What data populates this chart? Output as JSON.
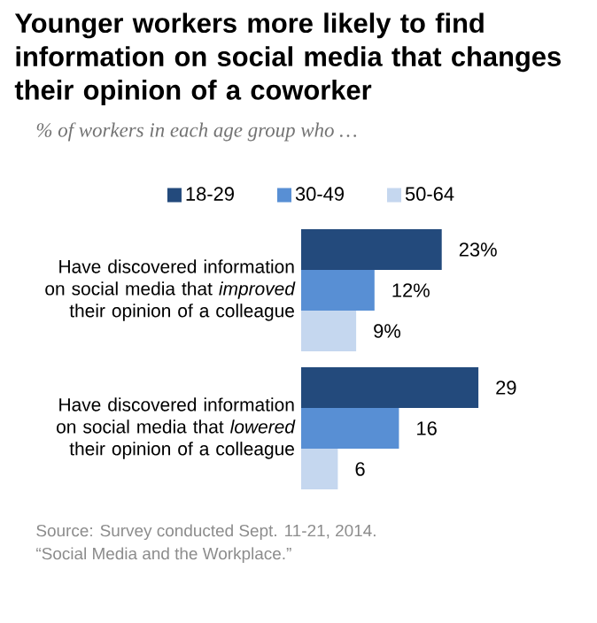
{
  "chart_data": {
    "type": "bar",
    "orientation": "horizontal",
    "title": "Younger workers more likely to find information on social media that changes their opinion of a coworker",
    "subtitle": "% of workers in each age group who …",
    "categories": [
      "Have discovered information on social media that *improved* their opinion of a colleague",
      "Have discovered information on social media that *lowered* their opinion of a colleague"
    ],
    "series": [
      {
        "name": "18-29",
        "color": "#234a7c",
        "values": [
          23,
          29
        ],
        "value_labels": [
          "23%",
          "29"
        ]
      },
      {
        "name": "30-49",
        "color": "#588fd4",
        "values": [
          12,
          16
        ],
        "value_labels": [
          "12%",
          "16"
        ]
      },
      {
        "name": "50-64",
        "color": "#c5d7ef",
        "values": [
          9,
          6
        ],
        "value_labels": [
          "9%",
          "6"
        ]
      }
    ],
    "legend": "top",
    "annotations": [
      "Source: Survey conducted Sept. 11-21, 2014.",
      "“Social Media and the Workplace.”"
    ]
  }
}
